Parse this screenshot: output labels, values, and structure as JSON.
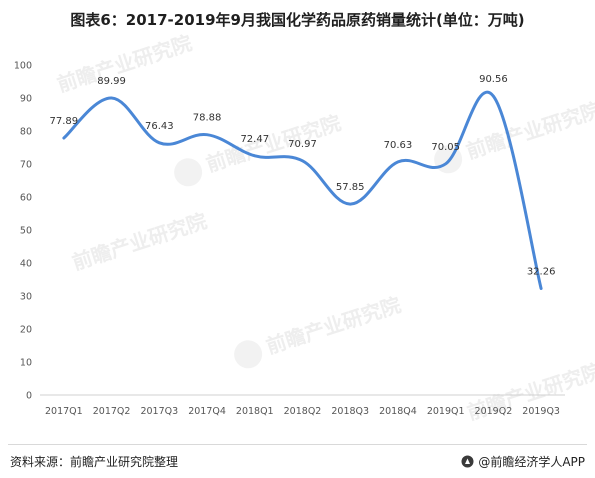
{
  "title": "图表6：2017-2019年9月我国化学药品原药销量统计(单位：万吨)",
  "footer": {
    "source": "资料来源：前瞻产业研究院整理",
    "brand": "@前瞻经济学人APP"
  },
  "chart_data": {
    "type": "line",
    "categories": [
      "2017Q1",
      "2017Q2",
      "2017Q3",
      "2017Q4",
      "2018Q1",
      "2018Q2",
      "2018Q3",
      "2018Q4",
      "2019Q1",
      "2019Q2",
      "2019Q3"
    ],
    "values": [
      77.89,
      89.99,
      76.43,
      78.88,
      72.47,
      70.97,
      57.85,
      70.63,
      70.05,
      90.56,
      32.26
    ],
    "labels": [
      "77.89",
      "89.99",
      "76.43",
      "78.88",
      "72.47",
      "70.97",
      "57.85",
      "70.63",
      "70.05",
      "90.56",
      "32.26"
    ],
    "yticks": [
      "0",
      "10",
      "20",
      "30",
      "40",
      "50",
      "60",
      "70",
      "80",
      "90",
      "100"
    ],
    "ylim": [
      0,
      100
    ],
    "grid": false,
    "line_color": "#4a87d6",
    "smooth": true
  }
}
